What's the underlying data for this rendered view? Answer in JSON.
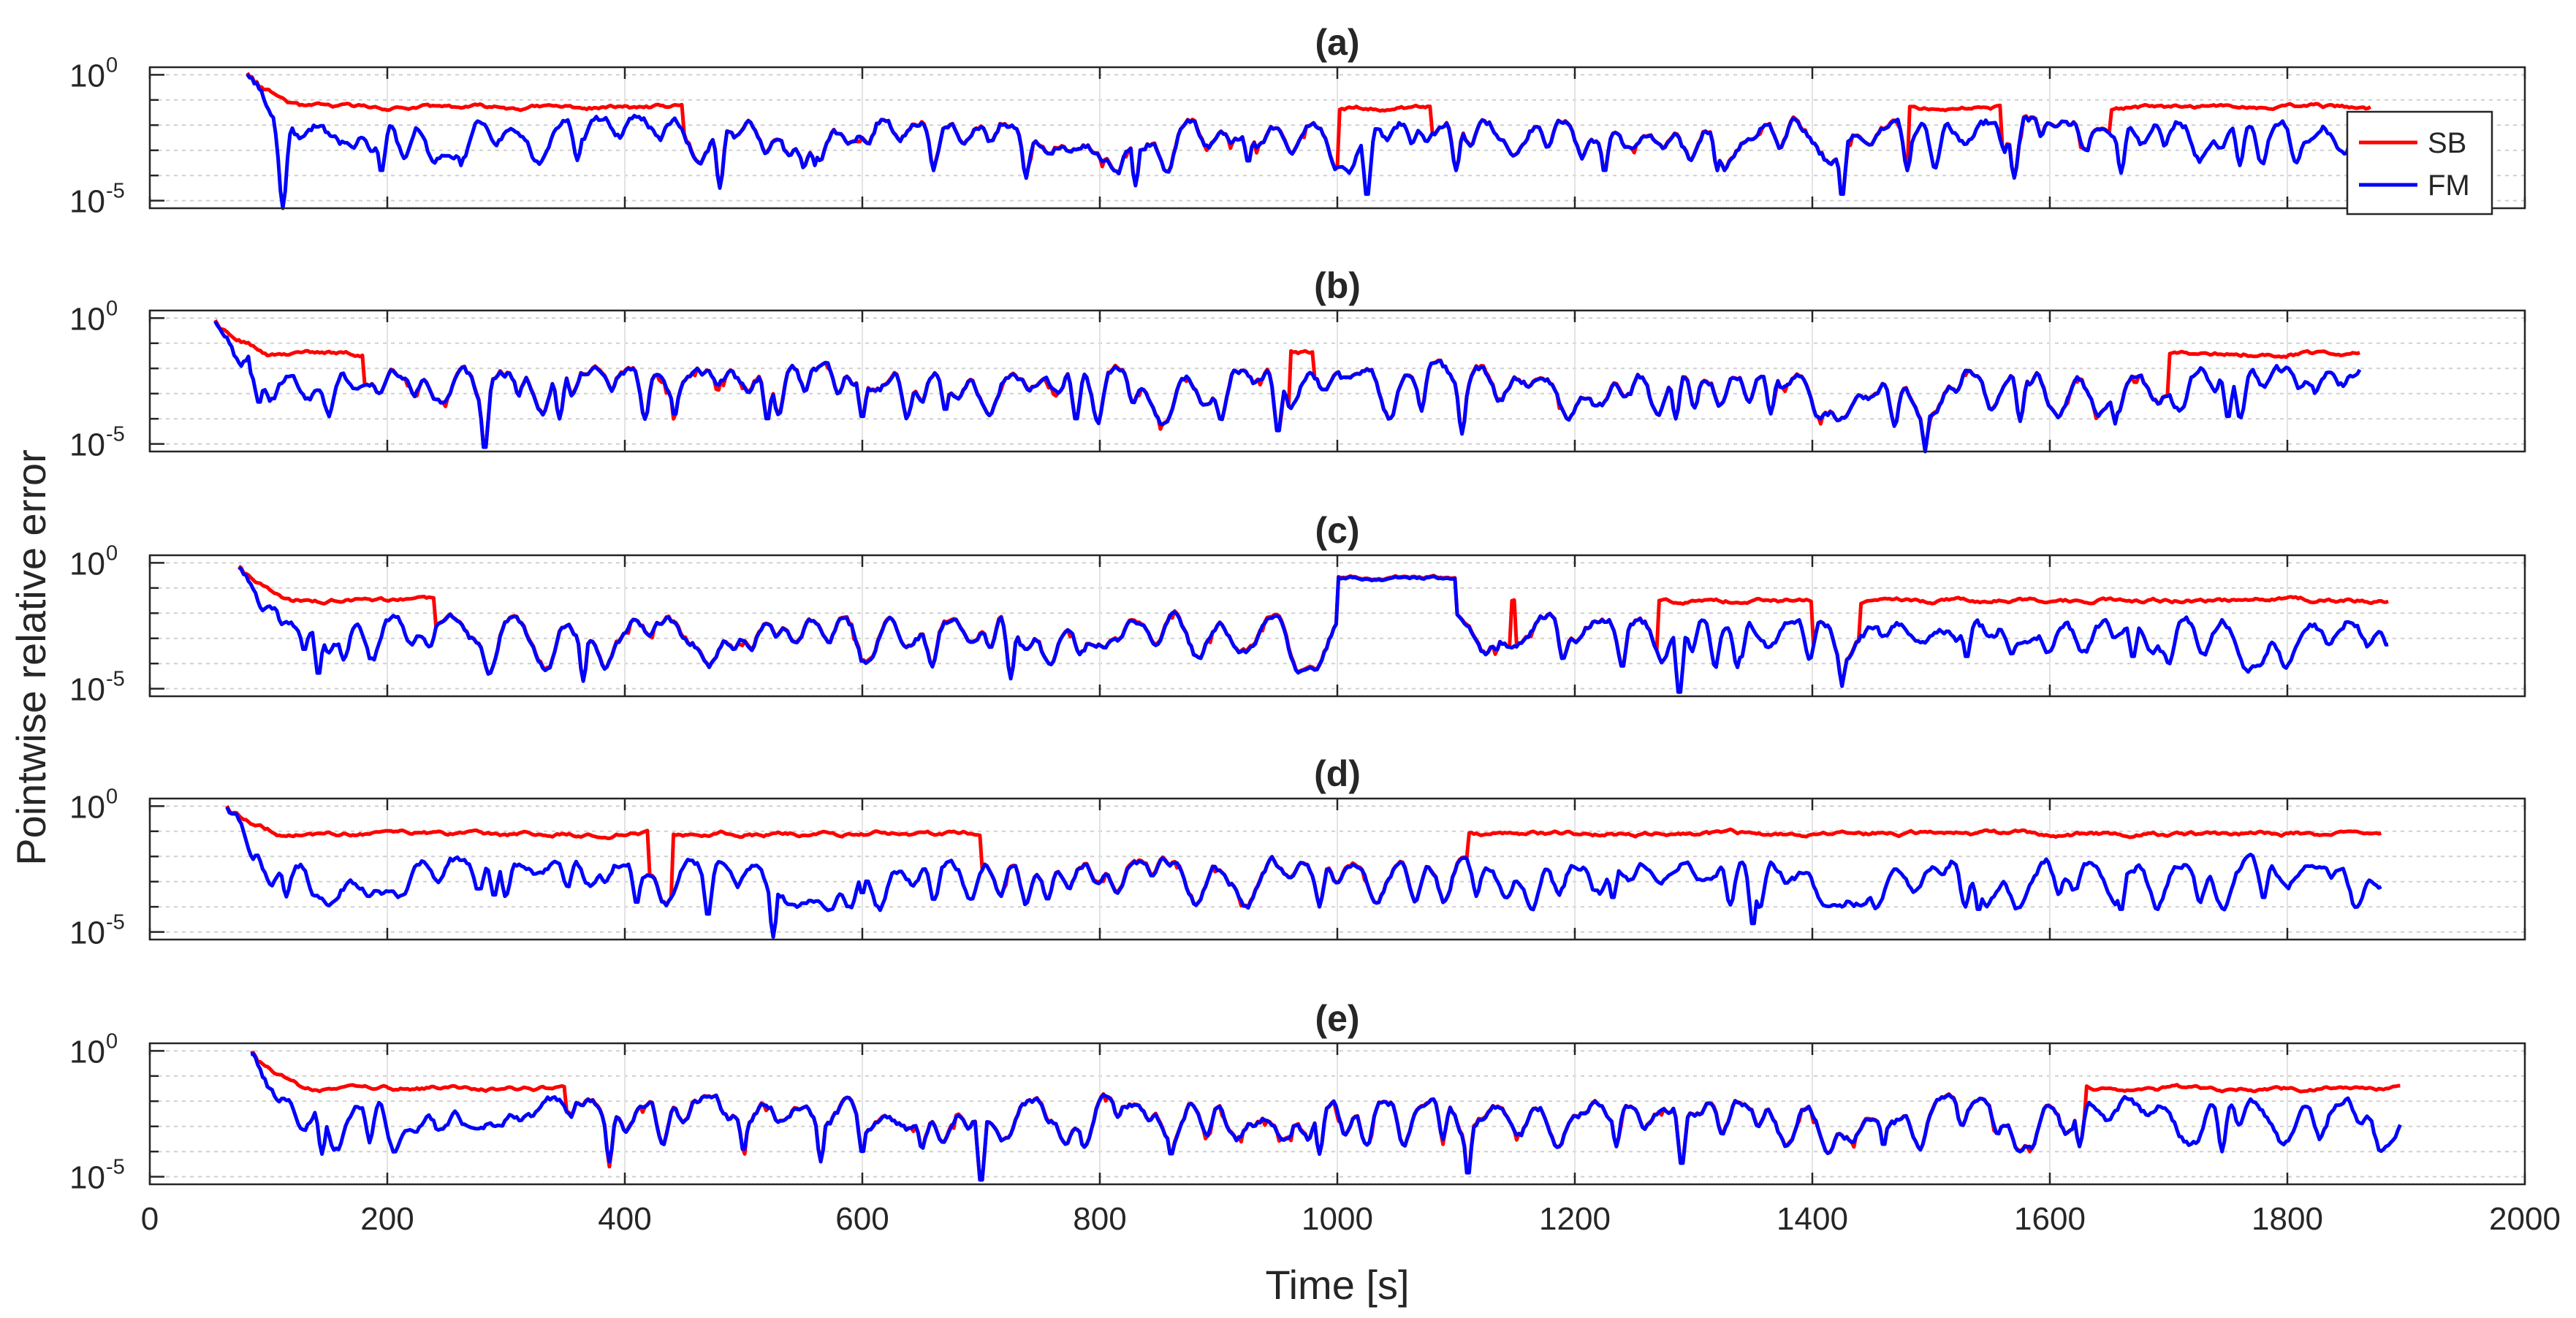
{
  "chart_data": {
    "type": "line",
    "ylabel": "Pointwise relative error",
    "xlabel": "Time [s]",
    "xlim": [
      0,
      2000
    ],
    "x_ticks": [
      0,
      200,
      400,
      600,
      800,
      1000,
      1200,
      1400,
      1600,
      1800,
      2000
    ],
    "x_tick_labels": [
      "0",
      "200",
      "400",
      "600",
      "800",
      "1000",
      "1200",
      "1400",
      "1600",
      "1800",
      "2000"
    ],
    "y_scale": "log",
    "ylim": [
      1e-05,
      1
    ],
    "y_tick_labels": [
      {
        "base": "10",
        "exp": "0"
      },
      {
        "base": "10",
        "exp": "-5"
      }
    ],
    "grid": true,
    "legend": {
      "position": "top-right of panel (a)",
      "entries": [
        {
          "name": "SB",
          "color": "#ff0000"
        },
        {
          "name": "FM",
          "color": "#0000ff"
        }
      ]
    },
    "series_note": "Red SB and blue FM traces are dense noisy log-scale error curves; values approximated from the figure (log10 of relative error).",
    "panels": [
      {
        "title": "(a)",
        "start": 82,
        "end": 1870,
        "seed": 11,
        "sb_baseline_log10": -1.3,
        "fm_baseline_log10": -1.9,
        "overlap_intervals": [
          [
            450,
            1000
          ],
          [
            1080,
            1480
          ],
          [
            1560,
            1650
          ]
        ],
        "dips_log10": [
          [
            112,
            -5.3
          ],
          [
            195,
            -3.9
          ],
          [
            262,
            -3.6
          ],
          [
            360,
            -3.4
          ],
          [
            480,
            -4.5
          ],
          [
            560,
            -3.6
          ],
          [
            660,
            -3.8
          ],
          [
            830,
            -4.4
          ],
          [
            925,
            -3.5
          ],
          [
            1025,
            -4.9
          ],
          [
            1100,
            -3.8
          ],
          [
            1225,
            -3.9
          ],
          [
            1320,
            -3.8
          ],
          [
            1425,
            -4.9
          ],
          [
            1480,
            -3.8
          ],
          [
            1570,
            -4.1
          ],
          [
            1660,
            -3.9
          ],
          [
            1760,
            -3.6
          ]
        ]
      },
      {
        "title": "(b)",
        "start": 55,
        "end": 1862,
        "seed": 23,
        "sb_baseline_log10": -1.4,
        "fm_baseline_log10": -2.1,
        "overlap_intervals": [
          [
            180,
            960
          ],
          [
            980,
            1700
          ]
        ],
        "dips_log10": [
          [
            92,
            -3.4
          ],
          [
            282,
            -5.3
          ],
          [
            345,
            -4.0
          ],
          [
            442,
            -3.9
          ],
          [
            520,
            -4.1
          ],
          [
            600,
            -4.0
          ],
          [
            670,
            -3.7
          ],
          [
            780,
            -4.1
          ],
          [
            950,
            -4.6
          ],
          [
            1105,
            -4.6
          ],
          [
            1195,
            -3.8
          ],
          [
            1285,
            -4.0
          ],
          [
            1365,
            -3.8
          ],
          [
            1495,
            -5.3
          ],
          [
            1575,
            -4.1
          ],
          [
            1655,
            -4.2
          ],
          [
            1750,
            -4.0
          ]
        ]
      },
      {
        "title": "(c)",
        "start": 75,
        "end": 1885,
        "seed": 37,
        "sb_baseline_log10": -1.5,
        "fm_baseline_log10": -2.2,
        "overlap_intervals": [
          [
            240,
            1145
          ],
          [
            1150,
            1270
          ],
          [
            1400,
            1440
          ]
        ],
        "plateau": [
          1000,
          1100,
          -0.6
        ],
        "dips_log10": [
          [
            130,
            -3.5
          ],
          [
            142,
            -4.5
          ],
          [
            365,
            -4.7
          ],
          [
            475,
            -3.8
          ],
          [
            600,
            -4.0
          ],
          [
            725,
            -4.6
          ],
          [
            798,
            -3.1
          ],
          [
            1134,
            -3.5
          ],
          [
            1240,
            -4.2
          ],
          [
            1288,
            -5.3
          ],
          [
            1340,
            -3.8
          ],
          [
            1425,
            -4.9
          ],
          [
            1530,
            -3.8
          ],
          [
            1670,
            -3.8
          ],
          [
            1780,
            -3.7
          ]
        ]
      },
      {
        "title": "(d)",
        "start": 65,
        "end": 1880,
        "seed": 53,
        "sb_baseline_log10": -1.1,
        "fm_baseline_log10": -2.2,
        "overlap_intervals": [
          [
            420,
            440
          ],
          [
            700,
            1110
          ]
        ],
        "dips_log10": [
          [
            115,
            -3.6
          ],
          [
            290,
            -3.6
          ],
          [
            410,
            -3.9
          ],
          [
            470,
            -4.4
          ],
          [
            525,
            -5.2
          ],
          [
            600,
            -3.5
          ],
          [
            985,
            -4.0
          ],
          [
            1232,
            -3.7
          ],
          [
            1350,
            -4.8
          ],
          [
            1455,
            -4.0
          ],
          [
            1540,
            -4.2
          ],
          [
            1660,
            -4.2
          ],
          [
            1780,
            -3.7
          ]
        ]
      },
      {
        "title": "(e)",
        "start": 85,
        "end": 1895,
        "seed": 71,
        "sb_baseline_log10": -1.5,
        "fm_baseline_log10": -2.0,
        "overlap_intervals": [
          [
            350,
            1630
          ]
        ],
        "dips_log10": [
          [
            145,
            -4.1
          ],
          [
            387,
            -4.4
          ],
          [
            500,
            -4.0
          ],
          [
            565,
            -4.4
          ],
          [
            600,
            -4.1
          ],
          [
            700,
            -5.3
          ],
          [
            860,
            -4.2
          ],
          [
            985,
            -4.1
          ],
          [
            1110,
            -5.0
          ],
          [
            1235,
            -3.8
          ],
          [
            1290,
            -4.6
          ],
          [
            1460,
            -3.8
          ],
          [
            1625,
            -3.8
          ],
          [
            1745,
            -4.0
          ],
          [
            1880,
            -3.6
          ]
        ]
      }
    ]
  }
}
